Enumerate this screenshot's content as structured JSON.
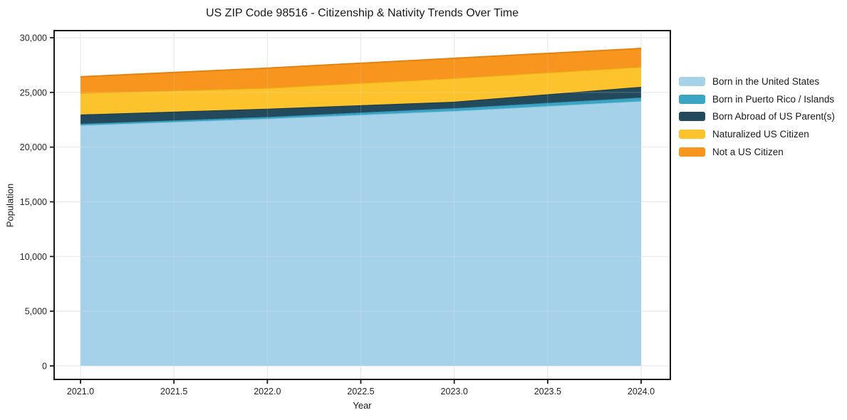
{
  "title": "US ZIP Code 98516 - Citizenship & Nativity Trends Over Time",
  "chart_data": {
    "type": "area",
    "stacked": true,
    "title": "US ZIP Code 98516 - Citizenship & Nativity Trends Over Time",
    "xlabel": "Year",
    "ylabel": "Population",
    "x": [
      2021,
      2022,
      2023,
      2024
    ],
    "series": [
      {
        "name": "Born in the United States",
        "color": "#a5d2e8",
        "edge": "#8cc3de",
        "values": [
          22000,
          22600,
          23300,
          24200
        ]
      },
      {
        "name": "Born in Puerto Rico / Islands",
        "color": "#3ba5c3",
        "edge": "#2f93b2",
        "values": [
          130,
          160,
          260,
          330
        ]
      },
      {
        "name": "Born Abroad of US Parent(s)",
        "color": "#234a5c",
        "edge": "#1a3a49",
        "values": [
          850,
          750,
          590,
          980
        ]
      },
      {
        "name": "Naturalized US Citizen",
        "color": "#fcc32d",
        "edge": "#eab113",
        "values": [
          1950,
          1890,
          2150,
          1820
        ]
      },
      {
        "name": "Not a US Citizen",
        "color": "#f7951f",
        "edge": "#e3830f",
        "values": [
          1500,
          1820,
          1820,
          1690
        ]
      }
    ],
    "xticks": [
      2021.0,
      2021.5,
      2022.0,
      2022.5,
      2023.0,
      2023.5,
      2024.0
    ],
    "xtick_labels": [
      "2021.0",
      "2021.5",
      "2022.0",
      "2022.5",
      "2023.0",
      "2023.5",
      "2024.0"
    ],
    "yticks": [
      0,
      5000,
      10000,
      15000,
      20000,
      25000,
      30000
    ],
    "ytick_labels": [
      "0",
      "5,000",
      "10,000",
      "15,000",
      "20,000",
      "25,000",
      "30,000"
    ],
    "xlim": [
      2020.859,
      2024.156
    ],
    "ylim": [
      -1237,
      30660
    ],
    "grid": true,
    "legend_position": "outside-right"
  },
  "colors": {
    "grid": "#e9e9e9",
    "spine": "#1a1a1a",
    "background": "#ffffff"
  }
}
